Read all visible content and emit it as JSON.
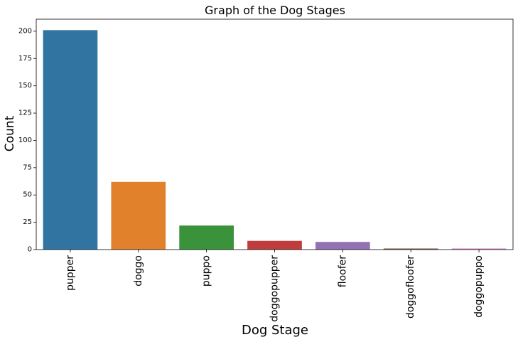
{
  "chart_data": {
    "type": "bar",
    "title": "Graph of the Dog Stages",
    "xlabel": "Dog Stage",
    "ylabel": "Count",
    "categories": [
      "pupper",
      "doggo",
      "puppo",
      "doggopupper",
      "floofer",
      "doggofloofer",
      "doggopuppo"
    ],
    "values": [
      201,
      62,
      22,
      8,
      7,
      1,
      1
    ],
    "colors": [
      "#3274a1",
      "#e1812c",
      "#3a923a",
      "#c03d3e",
      "#9372b2",
      "#845b53",
      "#d684bd"
    ],
    "yticks": [
      0,
      25,
      50,
      75,
      100,
      125,
      150,
      175,
      200
    ],
    "ylim": [
      0,
      211
    ],
    "grid": false,
    "legend": "none"
  }
}
